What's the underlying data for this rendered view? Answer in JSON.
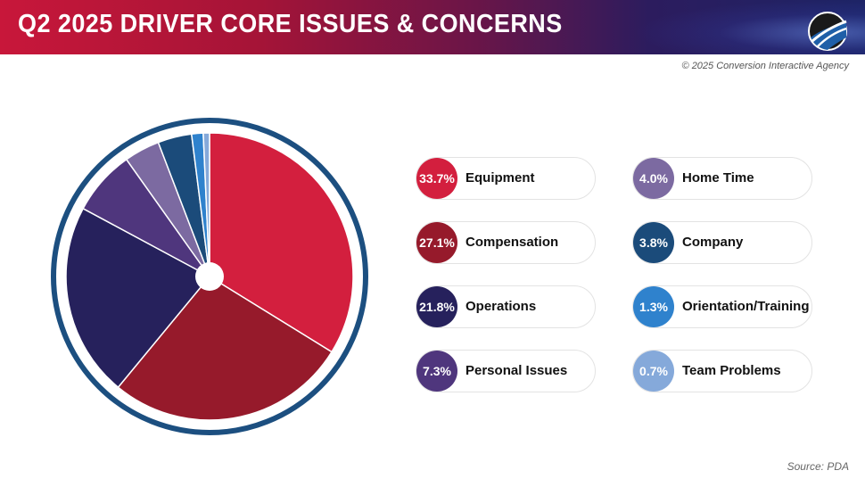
{
  "header": {
    "title": "Q2 2025 DRIVER CORE ISSUES & CONCERNS",
    "logo": "road-logo-icon"
  },
  "copyright": "© 2025 Conversion Interactive Agency",
  "source": "Source:  PDA",
  "chart_data": {
    "type": "pie",
    "title": "Q2 2025 Driver Core Issues & Concerns",
    "start": "12 o'clock, clockwise",
    "legend_placement": "right",
    "slices": [
      {
        "label": "Equipment",
        "value": 33.7,
        "display": "33.7%",
        "color": "#d31f3e"
      },
      {
        "label": "Compensation",
        "value": 27.1,
        "display": "27.1%",
        "color": "#961a2b"
      },
      {
        "label": "Operations",
        "value": 21.8,
        "display": "21.8%",
        "color": "#26215c"
      },
      {
        "label": "Personal Issues",
        "value": 7.3,
        "display": "7.3%",
        "color": "#4f367d"
      },
      {
        "label": "Home Time",
        "value": 4.0,
        "display": "4.0%",
        "color": "#7c6aa1"
      },
      {
        "label": "Company",
        "value": 3.8,
        "display": "3.8%",
        "color": "#1b4b7a"
      },
      {
        "label": "Orientation/Training",
        "value": 1.3,
        "display": "1.3%",
        "color": "#2f82cd"
      },
      {
        "label": "Team Problems",
        "value": 0.7,
        "display": "0.7%",
        "color": "#85a9da"
      }
    ],
    "ring_color": "#1c4f80"
  }
}
